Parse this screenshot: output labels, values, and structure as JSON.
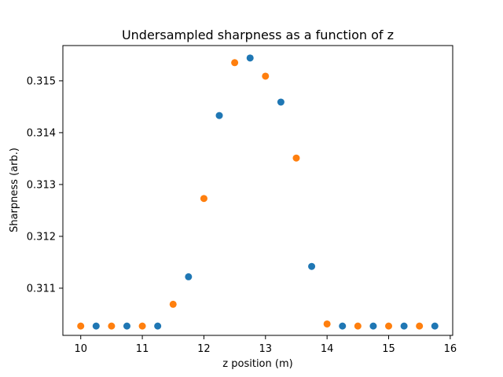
{
  "chart_data": {
    "type": "scatter",
    "title": "Undersampled sharpness as a function of z",
    "xlabel": "z position (m)",
    "ylabel": "Sharpness (arb.)",
    "xlim": [
      9.71,
      16.04
    ],
    "ylim": [
      0.31009,
      0.31568
    ],
    "xticks": [
      10,
      11,
      12,
      13,
      14,
      15,
      16
    ],
    "xtick_labels": [
      "10",
      "11",
      "12",
      "13",
      "14",
      "15",
      "16"
    ],
    "yticks": [
      0.311,
      0.312,
      0.313,
      0.314,
      0.315
    ],
    "ytick_labels": [
      "0.311",
      "0.312",
      "0.313",
      "0.314",
      "0.315"
    ],
    "grid": false,
    "series": [
      {
        "color": "#1f77b4",
        "x": [
          10.25,
          10.75,
          11.25,
          11.75,
          12.25,
          12.75,
          13.25,
          13.75,
          14.25,
          14.75,
          15.25,
          15.75
        ],
        "y": [
          0.31027,
          0.31027,
          0.31027,
          0.31122,
          0.31433,
          0.31544,
          0.31459,
          0.31142,
          0.31027,
          0.31027,
          0.31027,
          0.31027
        ]
      },
      {
        "color": "#ff7f0e",
        "x": [
          10.0,
          10.5,
          11.0,
          11.5,
          12.0,
          12.5,
          13.0,
          13.5,
          14.0,
          14.5,
          15.0,
          15.5
        ],
        "y": [
          0.31027,
          0.31027,
          0.31027,
          0.31069,
          0.31273,
          0.31535,
          0.31509,
          0.31351,
          0.31031,
          0.31027,
          0.31027,
          0.31027
        ]
      }
    ]
  }
}
